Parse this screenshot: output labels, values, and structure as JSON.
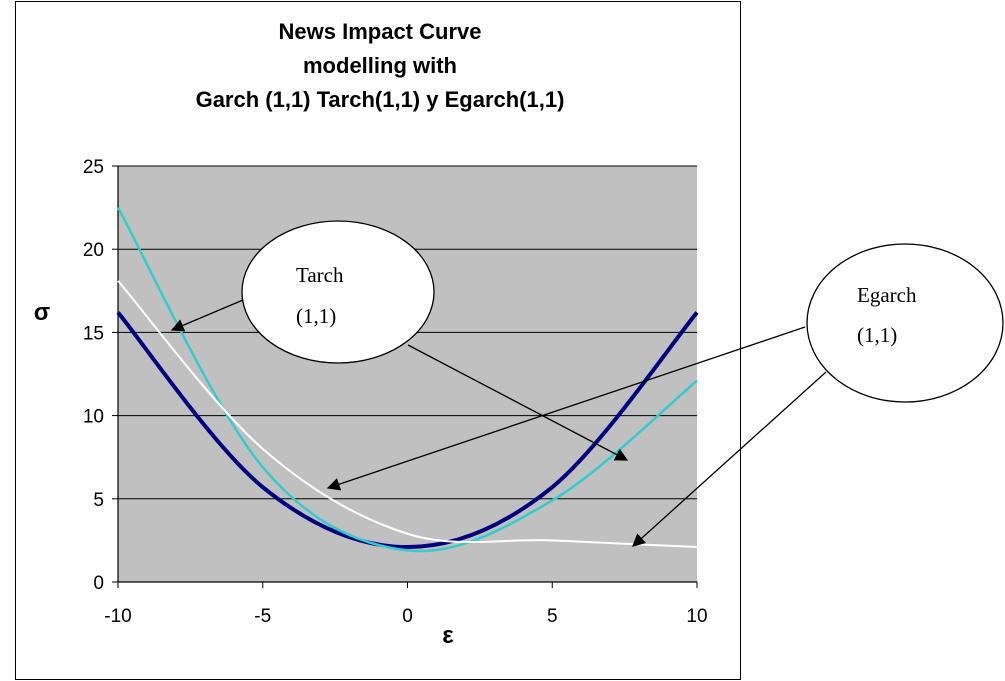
{
  "chart_data": {
    "type": "line",
    "title_lines": [
      "News Impact Curve",
      "modelling with",
      "Garch (1,1) Tarch(1,1) y Egarch(1,1)"
    ],
    "xlabel": "ε",
    "ylabel": "σ",
    "xlim": [
      -10,
      10
    ],
    "ylim": [
      0,
      25
    ],
    "xticks": [
      -10,
      -5,
      0,
      5,
      10
    ],
    "yticks": [
      0,
      5,
      10,
      15,
      20,
      25
    ],
    "grid": true,
    "plot_background": "#c0c0c0",
    "series": [
      {
        "color": "#000080",
        "x": [
          -10,
          -5,
          0,
          5,
          10
        ],
        "values": [
          16.2,
          5.7,
          2.1,
          5.7,
          16.2
        ]
      },
      {
        "color": "#33cccc",
        "x": [
          -10,
          -5,
          0,
          5,
          10
        ],
        "values": [
          22.5,
          6.9,
          1.9,
          4.9,
          12.1
        ]
      },
      {
        "color": "#ffffff",
        "x": [
          -10,
          -5,
          0,
          5,
          10
        ],
        "values": [
          18.1,
          8.0,
          2.9,
          2.5,
          2.1
        ]
      }
    ],
    "annotations": [
      {
        "line1": "Tarch",
        "line2": "(1,1)"
      },
      {
        "line1": "Egarch",
        "line2": "(1,1)"
      }
    ]
  }
}
